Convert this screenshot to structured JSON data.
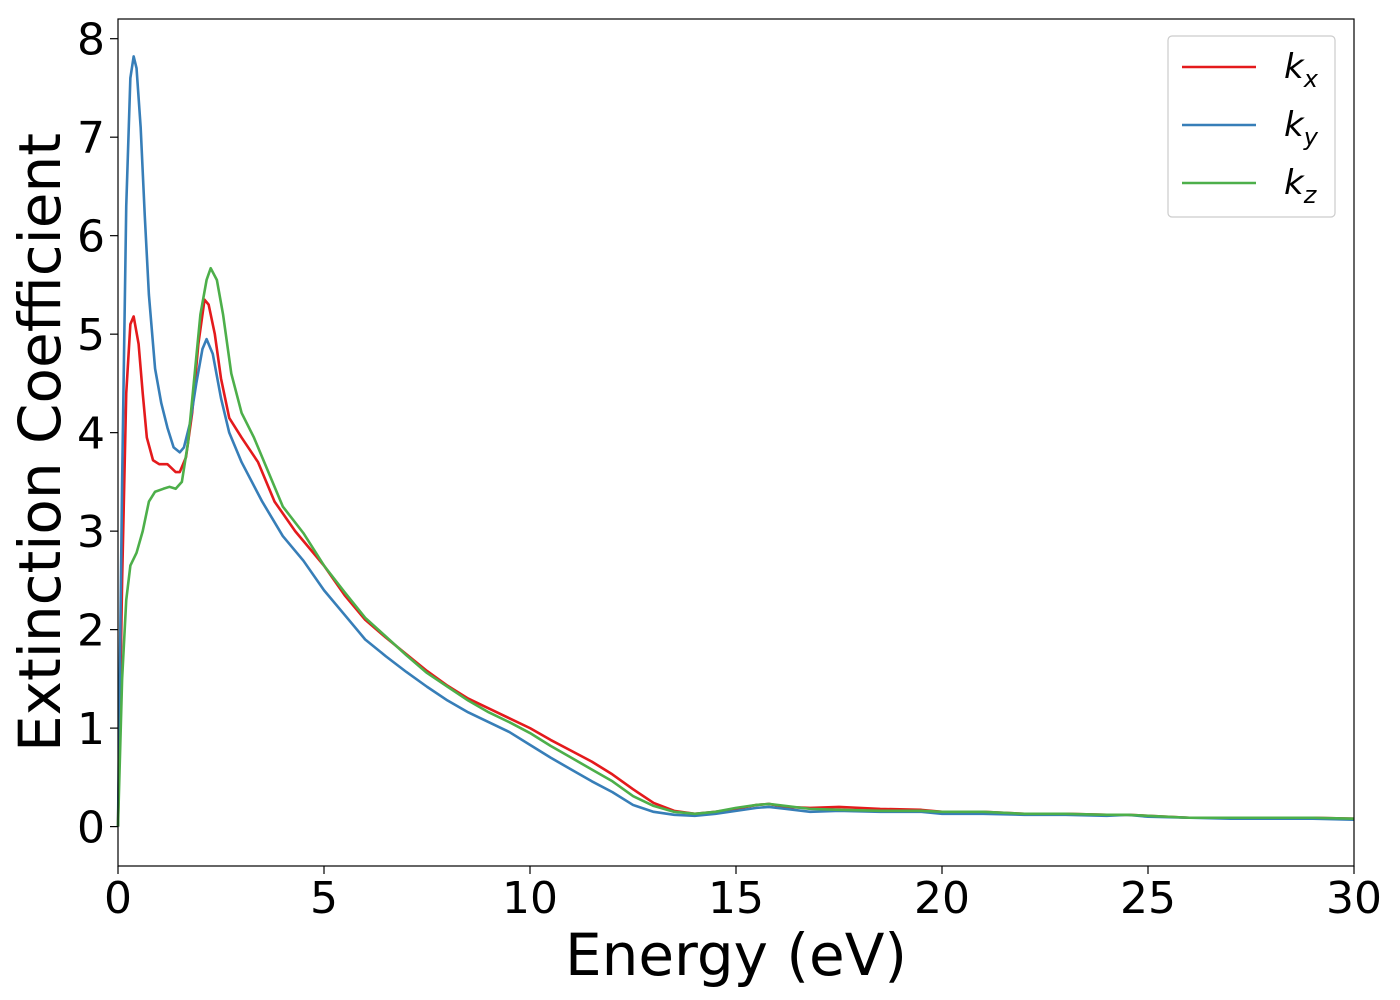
{
  "chart_data": {
    "type": "line",
    "title": "",
    "xlabel": "Energy (eV)",
    "ylabel": "Extinction Coefficient",
    "xlim": [
      0,
      30
    ],
    "ylim": [
      -0.4,
      8.2
    ],
    "xticks": [
      0,
      5,
      10,
      15,
      20,
      25,
      30
    ],
    "xtick_labels": [
      "0",
      "5",
      "10",
      "15",
      "20",
      "25",
      "30"
    ],
    "yticks": [
      0,
      1,
      2,
      3,
      4,
      5,
      6,
      7,
      8
    ],
    "ytick_labels": [
      "0",
      "1",
      "2",
      "3",
      "4",
      "5",
      "6",
      "7",
      "8"
    ],
    "grid": false,
    "legend_position": "top-right",
    "series": [
      {
        "name": "k_x",
        "legend_main": "k",
        "legend_sub": "x",
        "color": "#e41a1c",
        "points": [
          [
            0,
            0
          ],
          [
            0.1,
            2.5
          ],
          [
            0.2,
            4.4
          ],
          [
            0.3,
            5.1
          ],
          [
            0.38,
            5.18
          ],
          [
            0.5,
            4.9
          ],
          [
            0.6,
            4.4
          ],
          [
            0.7,
            3.95
          ],
          [
            0.85,
            3.72
          ],
          [
            1.0,
            3.68
          ],
          [
            1.2,
            3.68
          ],
          [
            1.4,
            3.6
          ],
          [
            1.5,
            3.6
          ],
          [
            1.65,
            3.75
          ],
          [
            1.8,
            4.2
          ],
          [
            1.95,
            4.9
          ],
          [
            2.1,
            5.35
          ],
          [
            2.2,
            5.3
          ],
          [
            2.35,
            5.0
          ],
          [
            2.5,
            4.55
          ],
          [
            2.7,
            4.15
          ],
          [
            3.0,
            3.95
          ],
          [
            3.4,
            3.7
          ],
          [
            3.8,
            3.3
          ],
          [
            4.3,
            3.0
          ],
          [
            5.0,
            2.65
          ],
          [
            5.5,
            2.35
          ],
          [
            6.0,
            2.1
          ],
          [
            6.5,
            1.92
          ],
          [
            7.0,
            1.75
          ],
          [
            7.5,
            1.58
          ],
          [
            8.0,
            1.43
          ],
          [
            8.5,
            1.3
          ],
          [
            9.0,
            1.2
          ],
          [
            9.5,
            1.1
          ],
          [
            10.0,
            1.0
          ],
          [
            10.5,
            0.88
          ],
          [
            11.0,
            0.77
          ],
          [
            11.5,
            0.66
          ],
          [
            12.0,
            0.53
          ],
          [
            12.5,
            0.38
          ],
          [
            13.0,
            0.24
          ],
          [
            13.5,
            0.16
          ],
          [
            14.0,
            0.13
          ],
          [
            14.5,
            0.15
          ],
          [
            15.0,
            0.18
          ],
          [
            15.5,
            0.22
          ],
          [
            15.8,
            0.23
          ],
          [
            16.2,
            0.2
          ],
          [
            16.8,
            0.19
          ],
          [
            17.5,
            0.2
          ],
          [
            18.5,
            0.18
          ],
          [
            19.5,
            0.17
          ],
          [
            20.0,
            0.15
          ],
          [
            21.0,
            0.15
          ],
          [
            22.0,
            0.13
          ],
          [
            23.0,
            0.13
          ],
          [
            24.0,
            0.12
          ],
          [
            24.5,
            0.12
          ],
          [
            25.0,
            0.11
          ],
          [
            26.0,
            0.09
          ],
          [
            27.0,
            0.09
          ],
          [
            28.0,
            0.09
          ],
          [
            29.0,
            0.09
          ],
          [
            30.0,
            0.08
          ]
        ]
      },
      {
        "name": "k_y",
        "legend_main": "k",
        "legend_sub": "y",
        "color": "#377eb8",
        "points": [
          [
            0,
            0
          ],
          [
            0.1,
            3.5
          ],
          [
            0.2,
            6.3
          ],
          [
            0.3,
            7.6
          ],
          [
            0.38,
            7.82
          ],
          [
            0.45,
            7.7
          ],
          [
            0.55,
            7.1
          ],
          [
            0.65,
            6.2
          ],
          [
            0.75,
            5.4
          ],
          [
            0.9,
            4.65
          ],
          [
            1.05,
            4.3
          ],
          [
            1.2,
            4.05
          ],
          [
            1.35,
            3.85
          ],
          [
            1.5,
            3.8
          ],
          [
            1.6,
            3.85
          ],
          [
            1.75,
            4.1
          ],
          [
            1.9,
            4.5
          ],
          [
            2.05,
            4.85
          ],
          [
            2.15,
            4.95
          ],
          [
            2.3,
            4.8
          ],
          [
            2.5,
            4.35
          ],
          [
            2.7,
            4.0
          ],
          [
            3.0,
            3.7
          ],
          [
            3.5,
            3.3
          ],
          [
            4.0,
            2.95
          ],
          [
            4.5,
            2.7
          ],
          [
            5.0,
            2.4
          ],
          [
            5.5,
            2.15
          ],
          [
            6.0,
            1.9
          ],
          [
            6.5,
            1.73
          ],
          [
            7.0,
            1.57
          ],
          [
            7.5,
            1.42
          ],
          [
            8.0,
            1.28
          ],
          [
            8.5,
            1.16
          ],
          [
            9.0,
            1.06
          ],
          [
            9.5,
            0.96
          ],
          [
            10.0,
            0.83
          ],
          [
            10.5,
            0.7
          ],
          [
            11.0,
            0.58
          ],
          [
            11.5,
            0.46
          ],
          [
            12.0,
            0.35
          ],
          [
            12.5,
            0.22
          ],
          [
            13.0,
            0.15
          ],
          [
            13.5,
            0.12
          ],
          [
            14.0,
            0.11
          ],
          [
            14.5,
            0.13
          ],
          [
            15.0,
            0.16
          ],
          [
            15.5,
            0.19
          ],
          [
            15.8,
            0.2
          ],
          [
            16.2,
            0.18
          ],
          [
            16.8,
            0.15
          ],
          [
            17.5,
            0.16
          ],
          [
            18.5,
            0.15
          ],
          [
            19.5,
            0.15
          ],
          [
            20.0,
            0.13
          ],
          [
            21.0,
            0.13
          ],
          [
            22.0,
            0.12
          ],
          [
            23.0,
            0.12
          ],
          [
            24.0,
            0.11
          ],
          [
            24.5,
            0.12
          ],
          [
            25.0,
            0.1
          ],
          [
            26.0,
            0.09
          ],
          [
            27.0,
            0.08
          ],
          [
            28.0,
            0.08
          ],
          [
            29.0,
            0.08
          ],
          [
            30.0,
            0.07
          ]
        ]
      },
      {
        "name": "k_z",
        "legend_main": "k",
        "legend_sub": "z",
        "color": "#4daf4a",
        "points": [
          [
            0,
            0
          ],
          [
            0.1,
            1.5
          ],
          [
            0.2,
            2.3
          ],
          [
            0.3,
            2.65
          ],
          [
            0.45,
            2.78
          ],
          [
            0.6,
            3.0
          ],
          [
            0.75,
            3.3
          ],
          [
            0.9,
            3.4
          ],
          [
            1.1,
            3.43
          ],
          [
            1.25,
            3.45
          ],
          [
            1.4,
            3.43
          ],
          [
            1.55,
            3.5
          ],
          [
            1.7,
            3.9
          ],
          [
            1.85,
            4.55
          ],
          [
            2.0,
            5.2
          ],
          [
            2.15,
            5.55
          ],
          [
            2.25,
            5.67
          ],
          [
            2.4,
            5.55
          ],
          [
            2.55,
            5.2
          ],
          [
            2.75,
            4.6
          ],
          [
            3.0,
            4.2
          ],
          [
            3.3,
            3.95
          ],
          [
            3.6,
            3.65
          ],
          [
            4.0,
            3.25
          ],
          [
            4.5,
            2.98
          ],
          [
            5.0,
            2.65
          ],
          [
            5.5,
            2.38
          ],
          [
            6.0,
            2.12
          ],
          [
            6.5,
            1.93
          ],
          [
            7.0,
            1.74
          ],
          [
            7.5,
            1.56
          ],
          [
            8.0,
            1.42
          ],
          [
            8.5,
            1.28
          ],
          [
            9.0,
            1.16
          ],
          [
            9.5,
            1.06
          ],
          [
            10.0,
            0.95
          ],
          [
            10.5,
            0.82
          ],
          [
            11.0,
            0.7
          ],
          [
            11.5,
            0.58
          ],
          [
            12.0,
            0.46
          ],
          [
            12.5,
            0.31
          ],
          [
            13.0,
            0.21
          ],
          [
            13.5,
            0.15
          ],
          [
            14.0,
            0.13
          ],
          [
            14.5,
            0.15
          ],
          [
            15.0,
            0.19
          ],
          [
            15.5,
            0.22
          ],
          [
            15.8,
            0.23
          ],
          [
            16.2,
            0.21
          ],
          [
            16.8,
            0.18
          ],
          [
            17.5,
            0.17
          ],
          [
            18.5,
            0.16
          ],
          [
            19.5,
            0.16
          ],
          [
            20.0,
            0.15
          ],
          [
            21.0,
            0.15
          ],
          [
            22.0,
            0.13
          ],
          [
            23.0,
            0.13
          ],
          [
            24.0,
            0.12
          ],
          [
            24.5,
            0.12
          ],
          [
            25.0,
            0.11
          ],
          [
            26.0,
            0.09
          ],
          [
            27.0,
            0.09
          ],
          [
            28.0,
            0.09
          ],
          [
            29.0,
            0.09
          ],
          [
            30.0,
            0.08
          ]
        ]
      }
    ]
  }
}
